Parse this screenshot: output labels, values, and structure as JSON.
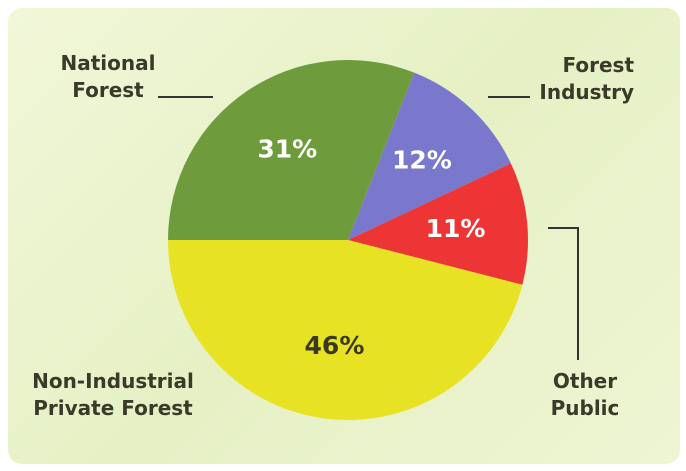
{
  "chart_data": {
    "type": "pie",
    "categories": [
      "National Forest",
      "Forest Industry",
      "Other Public",
      "Non-Industrial Private Forest"
    ],
    "values": [
      31,
      12,
      11,
      46
    ],
    "value_labels": [
      "31%",
      "12%",
      "11%",
      "46%"
    ],
    "colors": [
      "#6e9c3c",
      "#7a78cc",
      "#ee3535",
      "#e8e224"
    ]
  }
}
